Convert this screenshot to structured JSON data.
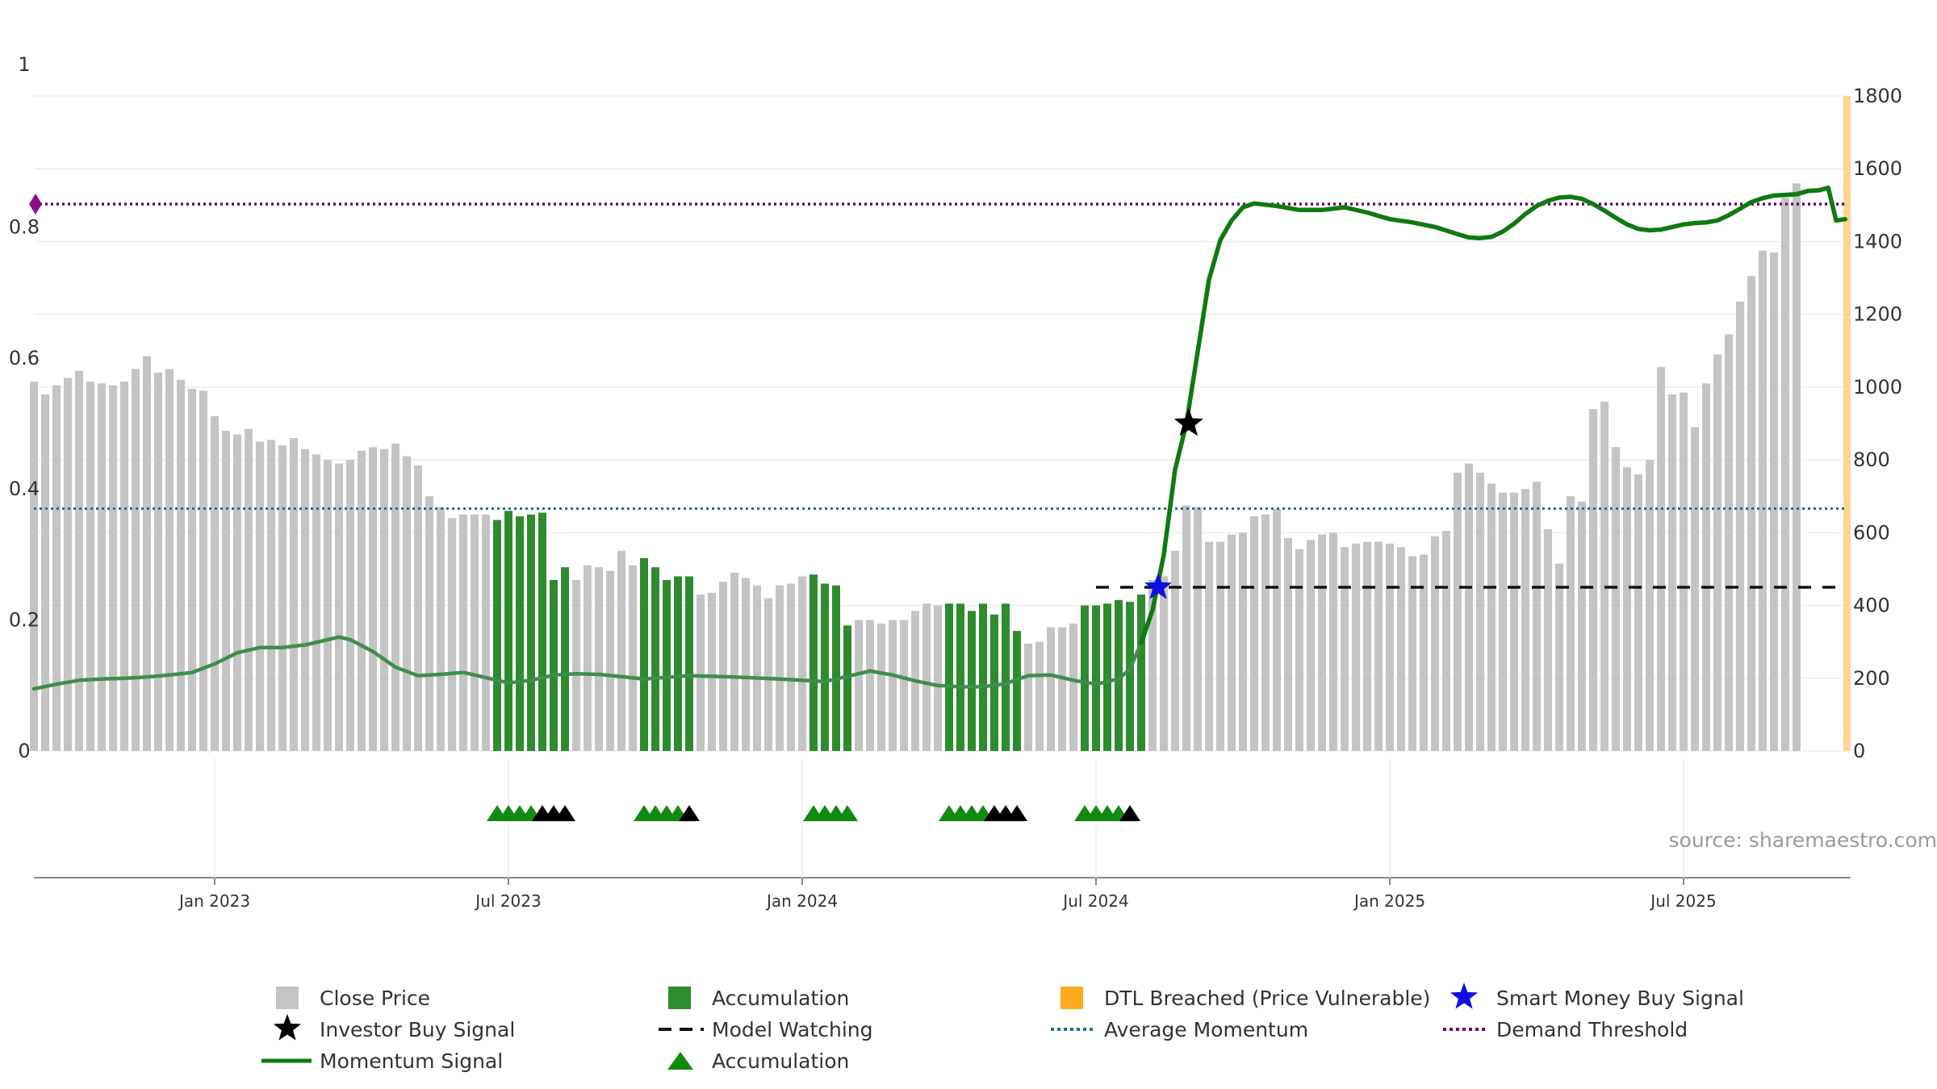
{
  "chart_data": {
    "type": "bar",
    "source": "source: sharemaestro.com",
    "colors": {
      "close_price": "#c4c4c4",
      "accumulation": "#2e8b2e",
      "momentum": "#0f7a0f",
      "momentum_early": "#3e8e4e",
      "demand_threshold": "#6b006b",
      "average_momentum": "#1f6f8b",
      "model_watching": "#111111",
      "dtl_breached": "#ffd591",
      "smart_money": "#1010e0",
      "investor_buy": "#000000"
    },
    "left_axis": {
      "ylim": [
        0,
        1
      ],
      "ticks": [
        0,
        0.2,
        0.4,
        0.6,
        0.8
      ],
      "top_label": "1"
    },
    "right_axis": {
      "ylim": [
        0,
        1800
      ],
      "ticks": [
        0,
        200,
        400,
        600,
        800,
        1000,
        1200,
        1400,
        1600,
        1800
      ]
    },
    "x_ticks": [
      {
        "label": "Jan 2023",
        "week": 16
      },
      {
        "label": "Jul 2023",
        "week": 42
      },
      {
        "label": "Jan 2024",
        "week": 68
      },
      {
        "label": "Jul 2024",
        "week": 94
      },
      {
        "label": "Jan 2025",
        "week": 120
      },
      {
        "label": "Jul 2025",
        "week": 146
      }
    ],
    "close_price": [
      1015,
      980,
      1005,
      1025,
      1045,
      1015,
      1010,
      1005,
      1015,
      1050,
      1085,
      1040,
      1050,
      1020,
      995,
      990,
      920,
      880,
      870,
      885,
      850,
      855,
      840,
      860,
      830,
      815,
      800,
      790,
      800,
      825,
      835,
      830,
      845,
      810,
      785,
      700,
      670,
      640,
      650,
      650,
      650,
      635,
      660,
      645,
      650,
      655,
      470,
      505,
      470,
      510,
      505,
      495,
      550,
      510,
      530,
      505,
      470,
      480,
      480,
      430,
      435,
      465,
      490,
      475,
      455,
      420,
      455,
      460,
      480,
      485,
      460,
      455,
      345,
      360,
      360,
      350,
      360,
      360,
      385,
      405,
      400,
      405,
      405,
      385,
      405,
      375,
      405,
      330,
      295,
      300,
      340,
      340,
      350,
      400,
      400,
      405,
      415,
      410,
      430,
      470,
      480,
      550,
      675,
      670,
      575,
      575,
      595,
      600,
      645,
      650,
      665,
      585,
      555,
      580,
      595,
      600,
      560,
      570,
      575,
      575,
      570,
      560,
      535,
      540,
      590,
      605,
      765,
      790,
      765,
      735,
      710,
      710,
      720,
      740,
      610,
      515,
      700,
      685,
      940,
      960,
      835,
      780,
      760,
      800,
      1055,
      980,
      985,
      890,
      1010,
      1090,
      1145,
      1235,
      1305,
      1375,
      1370,
      1520,
      1560
    ],
    "accumulation_ranges": [
      [
        41,
        47
      ],
      [
        54,
        58
      ],
      [
        69,
        72
      ],
      [
        81,
        87
      ],
      [
        93,
        98
      ]
    ],
    "momentum": [
      [
        0,
        0.095
      ],
      [
        2,
        0.102
      ],
      [
        4,
        0.108
      ],
      [
        6,
        0.11
      ],
      [
        8,
        0.111
      ],
      [
        10,
        0.113
      ],
      [
        12,
        0.116
      ],
      [
        14,
        0.12
      ],
      [
        16,
        0.133
      ],
      [
        18,
        0.15
      ],
      [
        20,
        0.158
      ],
      [
        22,
        0.158
      ],
      [
        24,
        0.162
      ],
      [
        26,
        0.17
      ],
      [
        27,
        0.174
      ],
      [
        28,
        0.17
      ],
      [
        30,
        0.152
      ],
      [
        32,
        0.128
      ],
      [
        34,
        0.115
      ],
      [
        36,
        0.117
      ],
      [
        38,
        0.12
      ],
      [
        40,
        0.112
      ],
      [
        42,
        0.104
      ],
      [
        44,
        0.108
      ],
      [
        46,
        0.116
      ],
      [
        48,
        0.118
      ],
      [
        50,
        0.117
      ],
      [
        54,
        0.11
      ],
      [
        58,
        0.115
      ],
      [
        62,
        0.113
      ],
      [
        66,
        0.11
      ],
      [
        70,
        0.106
      ],
      [
        72,
        0.114
      ],
      [
        74,
        0.122
      ],
      [
        76,
        0.116
      ],
      [
        78,
        0.107
      ],
      [
        80,
        0.1
      ],
      [
        82,
        0.098
      ],
      [
        84,
        0.098
      ],
      [
        86,
        0.103
      ],
      [
        88,
        0.115
      ],
      [
        90,
        0.116
      ],
      [
        92,
        0.108
      ],
      [
        94,
        0.102
      ],
      [
        96,
        0.11
      ],
      [
        97,
        0.125
      ],
      [
        98,
        0.165
      ],
      [
        99,
        0.215
      ],
      [
        100,
        0.3
      ],
      [
        101,
        0.43
      ],
      [
        102,
        0.5
      ],
      [
        103,
        0.61
      ],
      [
        104,
        0.72
      ],
      [
        105,
        0.78
      ],
      [
        106,
        0.81
      ],
      [
        107,
        0.83
      ],
      [
        108,
        0.836
      ],
      [
        110,
        0.832
      ],
      [
        112,
        0.826
      ],
      [
        114,
        0.826
      ],
      [
        116,
        0.83
      ],
      [
        118,
        0.822
      ],
      [
        120,
        0.812
      ],
      [
        122,
        0.807
      ],
      [
        124,
        0.8
      ],
      [
        126,
        0.789
      ],
      [
        127,
        0.784
      ],
      [
        128,
        0.783
      ],
      [
        129,
        0.785
      ],
      [
        130,
        0.793
      ],
      [
        131,
        0.805
      ],
      [
        132,
        0.82
      ],
      [
        133,
        0.832
      ],
      [
        134,
        0.84
      ],
      [
        135,
        0.845
      ],
      [
        136,
        0.846
      ],
      [
        137,
        0.843
      ],
      [
        138,
        0.835
      ],
      [
        139,
        0.825
      ],
      [
        140,
        0.814
      ],
      [
        141,
        0.804
      ],
      [
        142,
        0.797
      ],
      [
        143,
        0.795
      ],
      [
        144,
        0.796
      ],
      [
        145,
        0.8
      ],
      [
        146,
        0.804
      ],
      [
        147,
        0.806
      ],
      [
        148,
        0.807
      ],
      [
        149,
        0.81
      ],
      [
        150,
        0.818
      ],
      [
        151,
        0.828
      ],
      [
        152,
        0.838
      ],
      [
        153,
        0.844
      ],
      [
        154,
        0.848
      ],
      [
        155,
        0.849
      ],
      [
        156,
        0.85
      ],
      [
        157,
        0.855
      ],
      [
        158,
        0.856
      ],
      [
        158.8,
        0.86
      ],
      [
        159.5,
        0.81
      ],
      [
        160.3,
        0.812
      ]
    ],
    "momentum_highlight_from_week": 98,
    "demand_threshold": 0.835,
    "average_momentum": 0.37,
    "model_watching": {
      "level": 0.25,
      "from_week": 94,
      "to_week": 160
    },
    "smart_money_buy": {
      "week": 99.5,
      "value": 0.25
    },
    "investor_buy": {
      "week": 102.2,
      "value": 0.5
    },
    "dtl_breached_band": {
      "week": 160.5,
      "top": 1800
    },
    "signal_triangles": [
      {
        "week": 41,
        "color": "green"
      },
      {
        "week": 42,
        "color": "green"
      },
      {
        "week": 43,
        "color": "green"
      },
      {
        "week": 44,
        "color": "green"
      },
      {
        "week": 45,
        "color": "black"
      },
      {
        "week": 46,
        "color": "black"
      },
      {
        "week": 47,
        "color": "black"
      },
      {
        "week": 54,
        "color": "green"
      },
      {
        "week": 55,
        "color": "green"
      },
      {
        "week": 56,
        "color": "green"
      },
      {
        "week": 57,
        "color": "green"
      },
      {
        "week": 58,
        "color": "black"
      },
      {
        "week": 69,
        "color": "green"
      },
      {
        "week": 70,
        "color": "green"
      },
      {
        "week": 71,
        "color": "green"
      },
      {
        "week": 72,
        "color": "green"
      },
      {
        "week": 81,
        "color": "green"
      },
      {
        "week": 82,
        "color": "green"
      },
      {
        "week": 83,
        "color": "green"
      },
      {
        "week": 84,
        "color": "green"
      },
      {
        "week": 85,
        "color": "black"
      },
      {
        "week": 86,
        "color": "black"
      },
      {
        "week": 87,
        "color": "black"
      },
      {
        "week": 93,
        "color": "green"
      },
      {
        "week": 94,
        "color": "green"
      },
      {
        "week": 95,
        "color": "green"
      },
      {
        "week": 96,
        "color": "green"
      },
      {
        "week": 97,
        "color": "black"
      }
    ],
    "legend": [
      {
        "label": "Close Price",
        "kind": "square-grey"
      },
      {
        "label": "Accumulation",
        "kind": "square-green"
      },
      {
        "label": "DTL Breached (Price Vulnerable)",
        "kind": "square-orange"
      },
      {
        "label": "Smart Money Buy Signal",
        "kind": "star-blue"
      },
      {
        "label": "Investor Buy Signal",
        "kind": "star-black"
      },
      {
        "label": "Model Watching",
        "kind": "dash-black"
      },
      {
        "label": "Average Momentum",
        "kind": "dot-teal"
      },
      {
        "label": "Demand Threshold",
        "kind": "dot-purple"
      },
      {
        "label": "Momentum Signal",
        "kind": "line-green"
      },
      {
        "label": "Accumulation",
        "kind": "triangle-green"
      }
    ]
  }
}
